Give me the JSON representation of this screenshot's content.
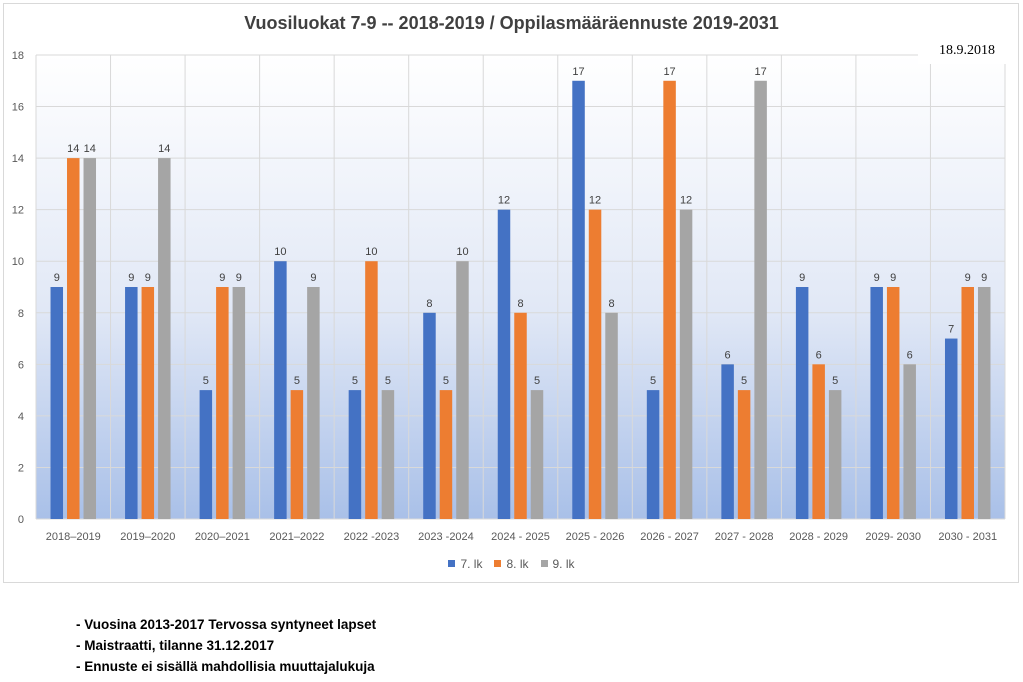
{
  "chart_data": {
    "type": "bar",
    "title": "Vuosiluokat 7-9 -- 2018-2019 / Oppilasmääräennuste 2019-2031",
    "annotation": "18.9.2018",
    "categories": [
      "2018–2019",
      "2019–2020",
      "2020–2021",
      "2021–2022",
      "2022 -2023",
      "2023 -2024",
      "2024 - 2025",
      "2025 - 2026",
      "2026 - 2027",
      "2027 - 2028",
      "2028 - 2029",
      "2029- 2030",
      "2030 - 2031"
    ],
    "series": [
      {
        "name": "7. lk",
        "color": "#4472c4",
        "values": [
          9,
          9,
          5,
          10,
          5,
          8,
          12,
          17,
          5,
          6,
          9,
          9,
          7
        ]
      },
      {
        "name": "8. lk",
        "color": "#ed7d31",
        "values": [
          14,
          9,
          9,
          5,
          10,
          5,
          8,
          12,
          17,
          5,
          6,
          9,
          9
        ]
      },
      {
        "name": "9. lk",
        "color": "#a5a5a5",
        "values": [
          14,
          14,
          9,
          9,
          5,
          10,
          5,
          8,
          12,
          17,
          5,
          6,
          9
        ]
      }
    ],
    "ylim": [
      0,
      18
    ],
    "yticks": [
      0,
      2,
      4,
      6,
      8,
      10,
      12,
      14,
      16,
      18
    ],
    "grid": true,
    "legend": "bottom",
    "data_labels": true
  },
  "notes": [
    "- Vuosina 2013-2017 Tervossa syntyneet lapset",
    "- Maistraatti, tilanne 31.12.2017",
    "- Ennuste ei sisällä mahdollisia muuttajalukuja"
  ]
}
